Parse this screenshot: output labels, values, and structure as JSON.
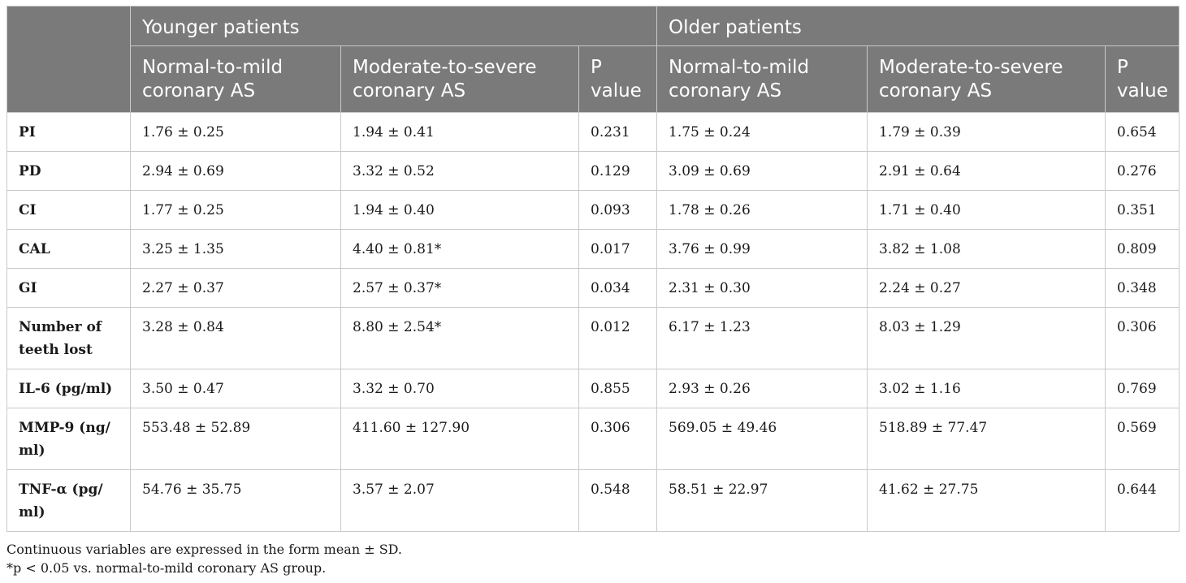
{
  "table": {
    "group_headers": {
      "younger": "Younger patients",
      "older": "Older patients"
    },
    "column_headers": {
      "younger_mild": "Normal-to-mild coronary AS",
      "younger_severe": "Moderate-to-severe coronary AS",
      "younger_p": "P value",
      "older_mild": "Normal-to-mild coronary AS",
      "older_severe": "Moderate-to-severe coronary AS",
      "older_p": "P value"
    },
    "rows": [
      {
        "label": "PI",
        "y_mild": "1.76 ± 0.25",
        "y_severe": "1.94 ± 0.41",
        "y_p": "0.231",
        "o_mild": "1.75 ± 0.24",
        "o_severe": "1.79 ± 0.39",
        "o_p": "0.654"
      },
      {
        "label": "PD",
        "y_mild": "2.94 ± 0.69",
        "y_severe": "3.32 ± 0.52",
        "y_p": "0.129",
        "o_mild": "3.09 ± 0.69",
        "o_severe": "2.91 ± 0.64",
        "o_p": "0.276"
      },
      {
        "label": "CI",
        "y_mild": "1.77 ± 0.25",
        "y_severe": "1.94 ± 0.40",
        "y_p": "0.093",
        "o_mild": "1.78 ± 0.26",
        "o_severe": "1.71 ± 0.40",
        "o_p": "0.351"
      },
      {
        "label": "CAL",
        "y_mild": "3.25 ± 1.35",
        "y_severe": "4.40 ± 0.81*",
        "y_p": "0.017",
        "o_mild": "3.76 ± 0.99",
        "o_severe": "3.82 ± 1.08",
        "o_p": "0.809"
      },
      {
        "label": "GI",
        "y_mild": "2.27 ± 0.37",
        "y_severe": "2.57 ± 0.37*",
        "y_p": "0.034",
        "o_mild": "2.31 ± 0.30",
        "o_severe": "2.24 ± 0.27",
        "o_p": "0.348"
      },
      {
        "label": "Number of teeth lost",
        "y_mild": "3.28 ± 0.84",
        "y_severe": "8.80 ± 2.54*",
        "y_p": "0.012",
        "o_mild": "6.17 ± 1.23",
        "o_severe": "8.03 ± 1.29",
        "o_p": "0.306"
      },
      {
        "label": "IL-6 (pg/ml)",
        "y_mild": "3.50 ± 0.47",
        "y_severe": "3.32 ± 0.70",
        "y_p": "0.855",
        "o_mild": "2.93 ± 0.26",
        "o_severe": "3.02 ± 1.16",
        "o_p": "0.769"
      },
      {
        "label": "MMP-9 (ng/ ml)",
        "y_mild": "553.48 ± 52.89",
        "y_severe": "411.60 ± 127.90",
        "y_p": "0.306",
        "o_mild": "569.05 ± 49.46",
        "o_severe": "518.89 ± 77.47",
        "o_p": "0.569"
      },
      {
        "label": "TNF-α (pg/ ml)",
        "y_mild": "54.76 ± 35.75",
        "y_severe": "3.57 ± 2.07",
        "y_p": "0.548",
        "o_mild": "58.51 ± 22.97",
        "o_severe": "41.62 ± 27.75",
        "o_p": "0.644"
      }
    ]
  },
  "footnotes": {
    "note1": "Continuous variables are expressed in the form mean ± SD.",
    "note2": "*p < 0.05 vs. normal-to-mild coronary AS group."
  }
}
